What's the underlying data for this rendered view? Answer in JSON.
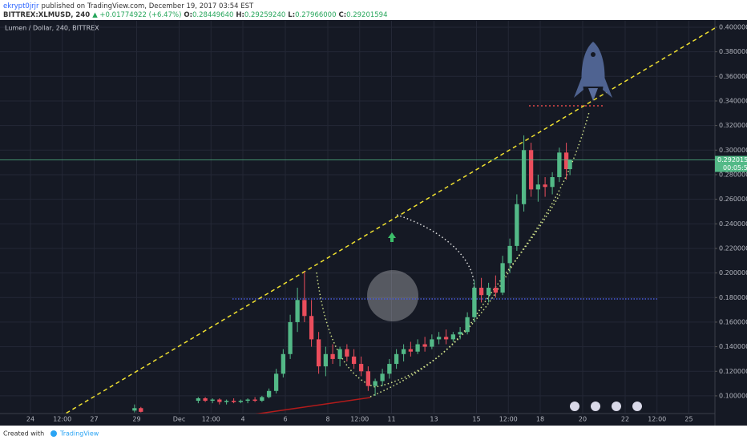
{
  "header": {
    "author": "ekrypt0jrjr",
    "published": "published on TradingView.com, December 19, 2017 03:54 EST",
    "symbol": "BITTREX:XLMUSD, 240",
    "change": "▲ +0.01774922 (+6.47%)",
    "ohlc": [
      {
        "label": "O:",
        "value": "0.28449640"
      },
      {
        "label": "H:",
        "value": "0.29259240"
      },
      {
        "label": "L:",
        "value": "0.27966000"
      },
      {
        "label": "C:",
        "value": "0.29201594"
      }
    ]
  },
  "chart_data": {
    "type": "candlestick",
    "title": "Lumen / Dollar, 240, BITTREX",
    "up_color": "#53b987",
    "down_color": "#eb4d5c",
    "grid": true,
    "last_price": {
      "value": 0.29201594,
      "label": "0.29201594"
    },
    "countdown": "00:05:57",
    "x": [
      4.9,
      5.2,
      7.9,
      8.23,
      8.57,
      8.9,
      9.23,
      9.57,
      9.9,
      10.23,
      10.57,
      10.9,
      11.23,
      11.57,
      11.9,
      12.23,
      12.57,
      12.9,
      13.23,
      13.57,
      13.9,
      14.23,
      14.57,
      14.9,
      15.23,
      15.57,
      15.9,
      16.23,
      16.57,
      16.9,
      17.23,
      17.57,
      17.9,
      18.23,
      18.57,
      18.9,
      19.23,
      19.57,
      19.9,
      20.23,
      20.57,
      20.9,
      21.23,
      21.57,
      21.9,
      22.23,
      22.57,
      22.9,
      23.23,
      23.57,
      23.9,
      24.23,
      24.57,
      24.9,
      25.23,
      25.4
    ],
    "open": [
      0.088,
      0.09,
      0.096,
      0.098,
      0.096,
      0.097,
      0.095,
      0.096,
      0.095,
      0.096,
      0.097,
      0.096,
      0.099,
      0.104,
      0.118,
      0.134,
      0.16,
      0.178,
      0.165,
      0.146,
      0.124,
      0.134,
      0.13,
      0.138,
      0.132,
      0.126,
      0.12,
      0.108,
      0.112,
      0.118,
      0.126,
      0.134,
      0.138,
      0.136,
      0.142,
      0.14,
      0.146,
      0.148,
      0.146,
      0.15,
      0.152,
      0.164,
      0.188,
      0.182,
      0.188,
      0.184,
      0.208,
      0.222,
      0.256,
      0.3,
      0.268,
      0.272,
      0.27,
      0.278,
      0.298,
      0.2844964
    ],
    "high": [
      0.093,
      0.091,
      0.099,
      0.099,
      0.098,
      0.098,
      0.097,
      0.098,
      0.097,
      0.098,
      0.099,
      0.1,
      0.106,
      0.122,
      0.138,
      0.166,
      0.188,
      0.201,
      0.178,
      0.152,
      0.14,
      0.142,
      0.14,
      0.142,
      0.138,
      0.132,
      0.124,
      0.114,
      0.122,
      0.13,
      0.138,
      0.142,
      0.144,
      0.146,
      0.148,
      0.15,
      0.152,
      0.154,
      0.152,
      0.156,
      0.168,
      0.194,
      0.196,
      0.192,
      0.198,
      0.214,
      0.228,
      0.264,
      0.312,
      0.306,
      0.28,
      0.278,
      0.282,
      0.302,
      0.306,
      0.2925924
    ],
    "low": [
      0.0865,
      0.0865,
      0.094,
      0.095,
      0.094,
      0.093,
      0.093,
      0.094,
      0.094,
      0.094,
      0.095,
      0.095,
      0.098,
      0.102,
      0.115,
      0.13,
      0.152,
      0.16,
      0.14,
      0.118,
      0.116,
      0.126,
      0.124,
      0.128,
      0.122,
      0.116,
      0.104,
      0.1,
      0.108,
      0.114,
      0.122,
      0.128,
      0.132,
      0.134,
      0.136,
      0.138,
      0.142,
      0.142,
      0.144,
      0.146,
      0.15,
      0.16,
      0.176,
      0.176,
      0.18,
      0.182,
      0.2,
      0.218,
      0.25,
      0.262,
      0.258,
      0.262,
      0.264,
      0.274,
      0.276,
      0.27966
    ],
    "close": [
      0.09,
      0.087,
      0.098,
      0.096,
      0.097,
      0.095,
      0.096,
      0.095,
      0.096,
      0.097,
      0.096,
      0.099,
      0.104,
      0.118,
      0.134,
      0.16,
      0.178,
      0.165,
      0.146,
      0.124,
      0.134,
      0.13,
      0.138,
      0.132,
      0.126,
      0.12,
      0.108,
      0.112,
      0.118,
      0.126,
      0.134,
      0.138,
      0.136,
      0.142,
      0.14,
      0.146,
      0.148,
      0.146,
      0.15,
      0.152,
      0.164,
      0.188,
      0.182,
      0.188,
      0.184,
      0.208,
      0.222,
      0.256,
      0.3,
      0.268,
      0.272,
      0.27,
      0.278,
      0.298,
      0.2844964,
      0.29201594
    ],
    "xlim": [
      -1.434,
      32.226
    ],
    "xticks": [
      {
        "value": 0,
        "label": "24"
      },
      {
        "value": 1.5,
        "label": "12:00"
      },
      {
        "value": 3,
        "label": "27"
      },
      {
        "value": 5,
        "label": "29"
      },
      {
        "value": 7,
        "label": "Dec"
      },
      {
        "value": 8.5,
        "label": "12:00"
      },
      {
        "value": 10,
        "label": "4"
      },
      {
        "value": 12,
        "label": "6"
      },
      {
        "value": 14,
        "label": "8"
      },
      {
        "value": 15.5,
        "label": "12:00"
      },
      {
        "value": 17,
        "label": "11"
      },
      {
        "value": 19,
        "label": "13"
      },
      {
        "value": 21,
        "label": "15"
      },
      {
        "value": 22.5,
        "label": "12:00"
      },
      {
        "value": 24,
        "label": "18"
      },
      {
        "value": 26,
        "label": "20"
      },
      {
        "value": 28,
        "label": "22"
      },
      {
        "value": 29.5,
        "label": "12:00"
      },
      {
        "value": 31,
        "label": "25"
      }
    ],
    "ylim": [
      0.0856,
      0.4052
    ],
    "yticks": [
      {
        "value": 0.1,
        "label": "0.10000000"
      },
      {
        "value": 0.12,
        "label": "0.12000000"
      },
      {
        "value": 0.14,
        "label": "0.14000000"
      },
      {
        "value": 0.16,
        "label": "0.16000000"
      },
      {
        "value": 0.18,
        "label": "0.18000000"
      },
      {
        "value": 0.2,
        "label": "0.20000000"
      },
      {
        "value": 0.22,
        "label": "0.22000000"
      },
      {
        "value": 0.24,
        "label": "0.24000000"
      },
      {
        "value": 0.26,
        "label": "0.26000000"
      },
      {
        "value": 0.28,
        "label": "0.28000000"
      },
      {
        "value": 0.3,
        "label": "0.30000000"
      },
      {
        "value": 0.32,
        "label": "0.32000000"
      },
      {
        "value": 0.34,
        "label": "0.34000000"
      },
      {
        "value": 0.36,
        "label": "0.36000000"
      },
      {
        "value": 0.38,
        "label": "0.38000000"
      },
      {
        "value": 0.4,
        "label": "0.40000000"
      }
    ]
  },
  "footer": {
    "created": "Created with",
    "brand": "TradingView"
  }
}
